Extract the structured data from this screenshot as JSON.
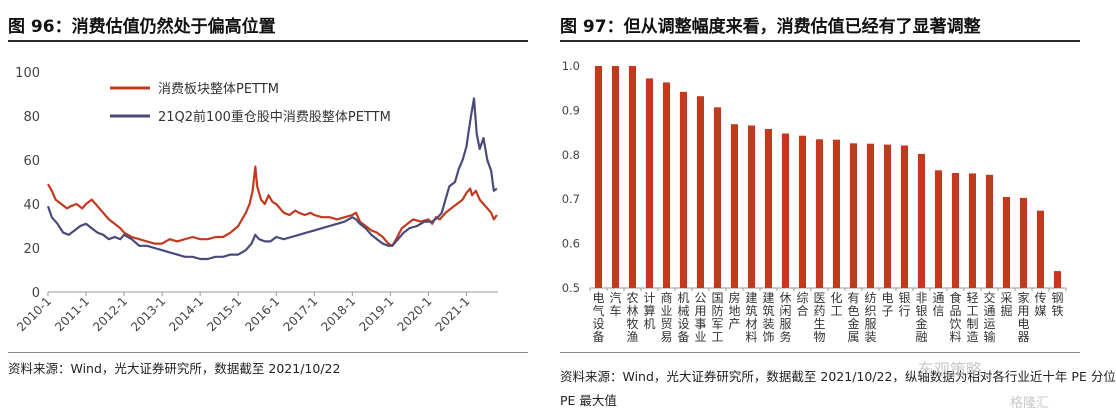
{
  "left": {
    "title": "图 96：消费估值仍然处于偏高位置",
    "source": "资料来源：Wind，光大证券研究所，数据截至 2021/10/22",
    "chart_data": {
      "type": "line",
      "xlabel": "",
      "ylabel": "",
      "ylim": [
        0,
        100
      ],
      "yticks": [
        0,
        20,
        40,
        60,
        80,
        100
      ],
      "xlim": [
        2010.0,
        2021.83
      ],
      "xticks": [
        2010,
        2011,
        2012,
        2013,
        2014,
        2015,
        2016,
        2017,
        2018,
        2019,
        2020,
        2021
      ],
      "xtick_labels": [
        "2010-1",
        "2011-1",
        "2012-1",
        "2013-1",
        "2014-1",
        "2015-1",
        "2016-1",
        "2017-1",
        "2018-1",
        "2019-1",
        "2020-1",
        "2021-1"
      ],
      "legend_position": "top-left",
      "grid": false,
      "series": [
        {
          "name": "消费板块整体PETTM",
          "color": "#c23a1e",
          "x": [
            2010.0,
            2010.1,
            2010.2,
            2010.35,
            2010.5,
            2010.6,
            2010.75,
            2010.9,
            2011.0,
            2011.15,
            2011.3,
            2011.45,
            2011.6,
            2011.75,
            2011.9,
            2012.0,
            2012.2,
            2012.4,
            2012.6,
            2012.8,
            2013.0,
            2013.2,
            2013.4,
            2013.6,
            2013.8,
            2014.0,
            2014.2,
            2014.4,
            2014.6,
            2014.8,
            2015.0,
            2015.1,
            2015.2,
            2015.3,
            2015.38,
            2015.45,
            2015.5,
            2015.6,
            2015.7,
            2015.8,
            2015.9,
            2016.0,
            2016.1,
            2016.2,
            2016.35,
            2016.5,
            2016.6,
            2016.75,
            2016.9,
            2017.0,
            2017.2,
            2017.4,
            2017.6,
            2017.8,
            2018.0,
            2018.1,
            2018.2,
            2018.35,
            2018.5,
            2018.65,
            2018.8,
            2018.95,
            2019.05,
            2019.15,
            2019.3,
            2019.45,
            2019.6,
            2019.8,
            2020.0,
            2020.1,
            2020.2,
            2020.3,
            2020.45,
            2020.6,
            2020.75,
            2020.9,
            2021.0,
            2021.1,
            2021.15,
            2021.25,
            2021.35,
            2021.45,
            2021.55,
            2021.65,
            2021.72,
            2021.8
          ],
          "values": [
            49,
            46,
            42,
            40,
            38,
            39,
            40,
            38,
            40,
            42,
            39,
            36,
            33,
            31,
            29,
            27,
            25,
            24,
            23,
            22,
            22,
            24,
            23,
            24,
            25,
            24,
            24,
            25,
            25,
            27,
            30,
            33,
            36,
            40,
            46,
            57,
            48,
            42,
            40,
            44,
            41,
            40,
            38,
            36,
            35,
            37,
            36,
            35,
            36,
            35,
            34,
            34,
            33,
            34,
            35,
            36,
            32,
            30,
            28,
            27,
            25,
            22,
            21,
            24,
            29,
            31,
            33,
            32,
            33,
            31,
            34,
            33,
            36,
            38,
            40,
            42,
            45,
            47,
            44,
            46,
            42,
            40,
            38,
            36,
            33,
            35
          ]
        },
        {
          "name": "21Q2前100重仓股中消费股整体PETTM",
          "color": "#4a4a7a",
          "x": [
            2010.0,
            2010.1,
            2010.25,
            2010.4,
            2010.55,
            2010.7,
            2010.85,
            2011.0,
            2011.15,
            2011.3,
            2011.45,
            2011.6,
            2011.75,
            2011.9,
            2012.0,
            2012.2,
            2012.4,
            2012.6,
            2012.8,
            2013.0,
            2013.2,
            2013.4,
            2013.6,
            2013.8,
            2014.0,
            2014.2,
            2014.4,
            2014.6,
            2014.8,
            2015.0,
            2015.2,
            2015.35,
            2015.45,
            2015.55,
            2015.7,
            2015.85,
            2016.0,
            2016.2,
            2016.4,
            2016.6,
            2016.8,
            2017.0,
            2017.2,
            2017.4,
            2017.6,
            2017.8,
            2018.0,
            2018.1,
            2018.2,
            2018.35,
            2018.5,
            2018.65,
            2018.8,
            2018.95,
            2019.05,
            2019.2,
            2019.35,
            2019.5,
            2019.7,
            2019.9,
            2020.1,
            2020.25,
            2020.35,
            2020.45,
            2020.55,
            2020.7,
            2020.8,
            2020.9,
            2021.0,
            2021.05,
            2021.12,
            2021.2,
            2021.27,
            2021.35,
            2021.45,
            2021.55,
            2021.65,
            2021.72,
            2021.8
          ],
          "values": [
            39,
            34,
            31,
            27,
            26,
            28,
            30,
            31,
            29,
            27,
            26,
            24,
            25,
            24,
            26,
            24,
            21,
            21,
            20,
            19,
            18,
            17,
            16,
            16,
            15,
            15,
            16,
            16,
            17,
            17,
            19,
            22,
            26,
            24,
            23,
            23,
            25,
            24,
            25,
            26,
            27,
            28,
            29,
            30,
            31,
            32,
            34,
            33,
            31,
            29,
            26,
            24,
            22,
            21,
            21,
            24,
            27,
            29,
            30,
            32,
            32,
            34,
            36,
            42,
            48,
            50,
            56,
            60,
            66,
            72,
            80,
            88,
            72,
            65,
            70,
            60,
            55,
            46,
            47
          ]
        }
      ]
    }
  },
  "right": {
    "title": "图 97：但从调整幅度来看，消费估值已经有了显著调整",
    "source_line1": "资料来源：Wind，光大证券研究所，数据截至 2021/10/22，纵轴数据为相对各行业近十年 PE 分位",
    "source_line2": "PE 最大值",
    "chart_data": {
      "type": "bar",
      "xlabel": "",
      "ylabel": "",
      "ylim": [
        0.5,
        1.0
      ],
      "yticks": [
        0.5,
        0.6,
        0.7,
        0.8,
        0.9,
        1.0
      ],
      "ytick_labels": [
        "0.5",
        "0.6",
        "0.7",
        "0.8",
        "0.9",
        "1.0"
      ],
      "grid": false,
      "bar_color": "#c23a1e",
      "categories": [
        "电气设备",
        "汽车",
        "农林牧渔",
        "计算机",
        "商业贸易",
        "机械设备",
        "公用事业",
        "国防军工",
        "房地产",
        "建筑材料",
        "建筑装饰",
        "休闲服务",
        "综合",
        "医药生物",
        "化工",
        "有色金属",
        "纺织服装",
        "电子",
        "银行",
        "非银金融",
        "通信",
        "食品饮料",
        "轻工制造",
        "交通运输",
        "采掘",
        "家用电器",
        "传媒",
        "钢铁"
      ],
      "values": [
        1.0,
        1.0,
        1.0,
        0.972,
        0.963,
        0.942,
        0.932,
        0.907,
        0.869,
        0.866,
        0.858,
        0.848,
        0.843,
        0.835,
        0.834,
        0.826,
        0.825,
        0.823,
        0.821,
        0.802,
        0.765,
        0.759,
        0.758,
        0.755,
        0.705,
        0.703,
        0.674,
        0.538
      ]
    }
  },
  "watermark": {
    "text1": "东观策略",
    "text2": "格隆汇"
  }
}
